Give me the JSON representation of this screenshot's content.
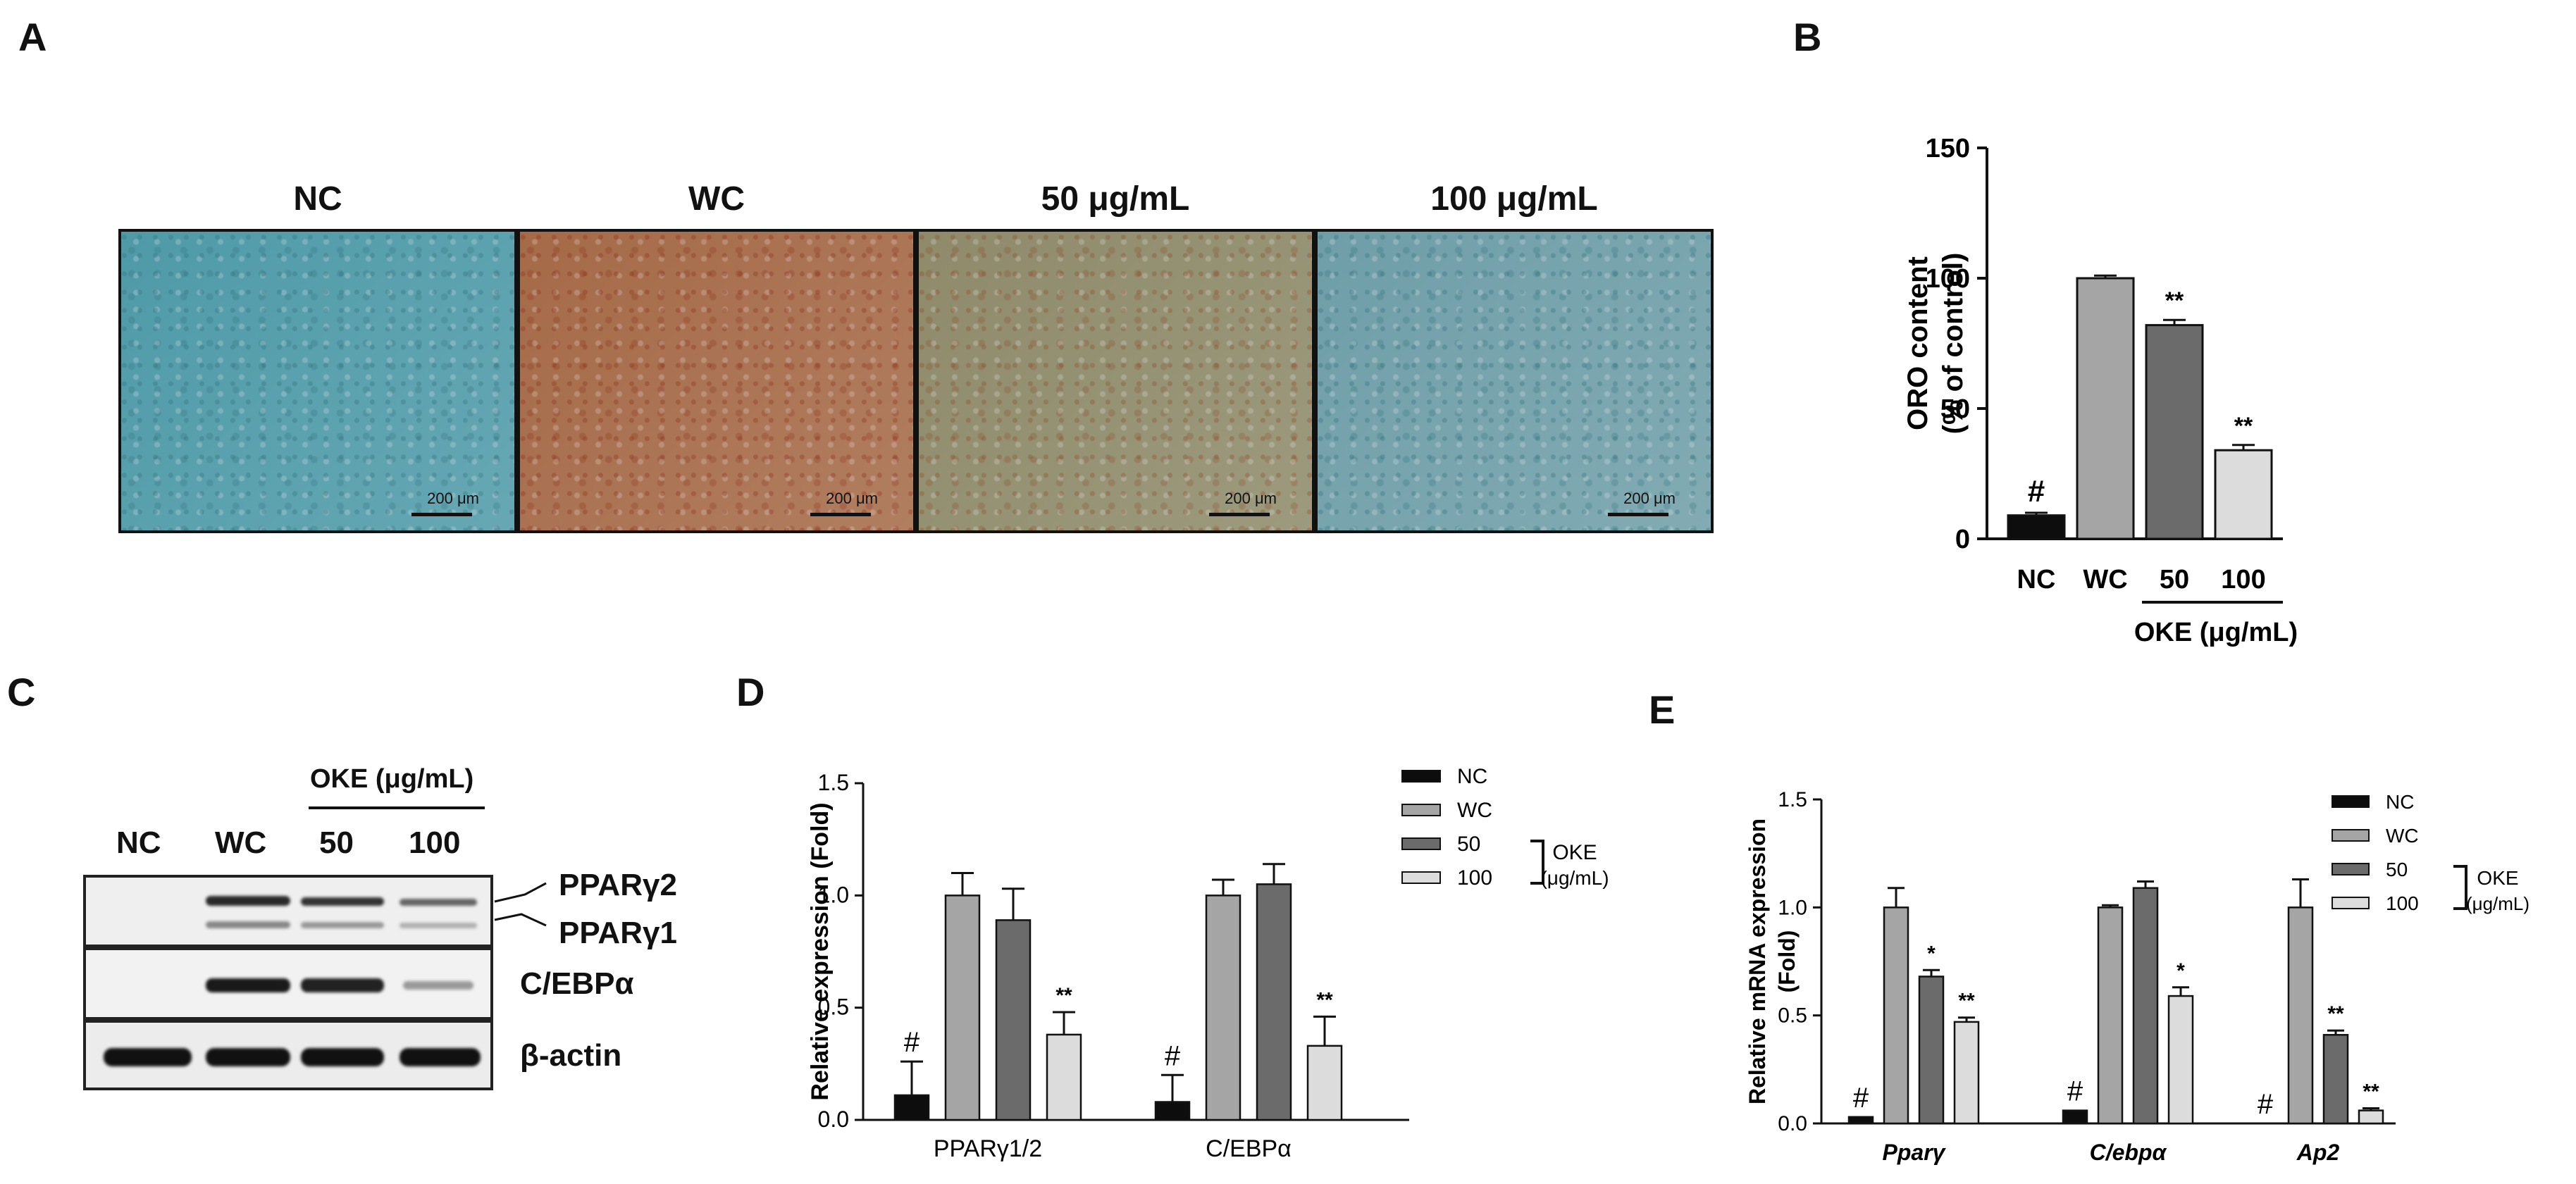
{
  "panel_labels": {
    "a": "A",
    "b": "B",
    "c": "C",
    "d": "D",
    "e": "E"
  },
  "panel_a": {
    "groups": [
      "NC",
      "WC",
      "50 μg/mL",
      "100 μg/mL"
    ],
    "scale_bar_label": "200 μm",
    "tints": [
      "#4f9aa8",
      "#a56a48",
      "#8e8a6a",
      "#6f9ea8"
    ]
  },
  "colors": {
    "nc": "#0d0d0d",
    "wc": "#a5a5a5",
    "c50": "#6b6b6b",
    "c100": "#dcdcdc",
    "stroke": "#111111"
  },
  "panel_c": {
    "group_title": "OKE (μg/mL)",
    "lanes": [
      "NC",
      "WC",
      "50",
      "100"
    ],
    "bands": [
      "PPARγ2",
      "PPARγ1",
      "C/EBPα",
      "β-actin"
    ]
  },
  "chart_data": [
    {
      "panel": "B",
      "type": "bar",
      "categories": [
        "NC",
        "WC",
        "50",
        "100"
      ],
      "values": [
        9,
        100,
        82,
        34
      ],
      "errors": [
        1,
        1,
        2,
        2
      ],
      "annotations": [
        "#",
        "",
        "**",
        "**"
      ],
      "ylabel_line1": "ORO content",
      "ylabel_line2": "(% of control)",
      "ylim": [
        0,
        150
      ],
      "yticks": [
        "0",
        "50",
        "100",
        "150"
      ],
      "bracket_label": "OKE (μg/mL)",
      "grid": false
    },
    {
      "panel": "D",
      "type": "bar",
      "categories": [
        "PPARγ1/2",
        "C/EBPα"
      ],
      "series": [
        {
          "name": "NC",
          "values": [
            0.11,
            0.08
          ],
          "errors": [
            0.15,
            0.12
          ],
          "annotations": [
            "#",
            "#"
          ]
        },
        {
          "name": "WC",
          "values": [
            1.0,
            1.0
          ],
          "errors": [
            0.1,
            0.07
          ],
          "annotations": [
            "",
            ""
          ]
        },
        {
          "name": "50",
          "values": [
            0.89,
            1.05
          ],
          "errors": [
            0.14,
            0.09
          ],
          "annotations": [
            "",
            ""
          ]
        },
        {
          "name": "100",
          "values": [
            0.38,
            0.33
          ],
          "errors": [
            0.1,
            0.13
          ],
          "annotations": [
            "**",
            "**"
          ]
        }
      ],
      "ylabel": "Relative expression (Fold)",
      "ylim": [
        0,
        1.5
      ],
      "yticks": [
        "0.0",
        "0.5",
        "1.0",
        "1.5"
      ],
      "legend_group_label_1": "OKE",
      "legend_group_label_2": "(μg/mL)",
      "legend_position": "top-right",
      "grid": false
    },
    {
      "panel": "E",
      "type": "bar",
      "categories": [
        "Pparγ",
        "C/ebpα",
        "Ap2"
      ],
      "series": [
        {
          "name": "NC",
          "values": [
            0.03,
            0.06,
            0.0
          ],
          "errors": [
            0.0,
            0.0,
            0.0
          ],
          "annotations": [
            "#",
            "#",
            "#"
          ]
        },
        {
          "name": "WC",
          "values": [
            1.0,
            1.0,
            1.0
          ],
          "errors": [
            0.09,
            0.01,
            0.13
          ],
          "annotations": [
            "",
            "",
            ""
          ]
        },
        {
          "name": "50",
          "values": [
            0.68,
            1.09,
            0.41
          ],
          "errors": [
            0.03,
            0.03,
            0.02
          ],
          "annotations": [
            "*",
            "",
            "**"
          ]
        },
        {
          "name": "100",
          "values": [
            0.47,
            0.59,
            0.06
          ],
          "errors": [
            0.02,
            0.04,
            0.01
          ],
          "annotations": [
            "**",
            "*",
            "**"
          ]
        }
      ],
      "ylabel_line1": "Relative mRNA expression",
      "ylabel_line2": "(Fold)",
      "ylim": [
        0,
        1.5
      ],
      "yticks": [
        "0.0",
        "0.5",
        "1.0",
        "1.5"
      ],
      "legend_group_label_1": "OKE",
      "legend_group_label_2": "(μg/mL)",
      "legend_position": "top-right",
      "grid": false
    }
  ]
}
